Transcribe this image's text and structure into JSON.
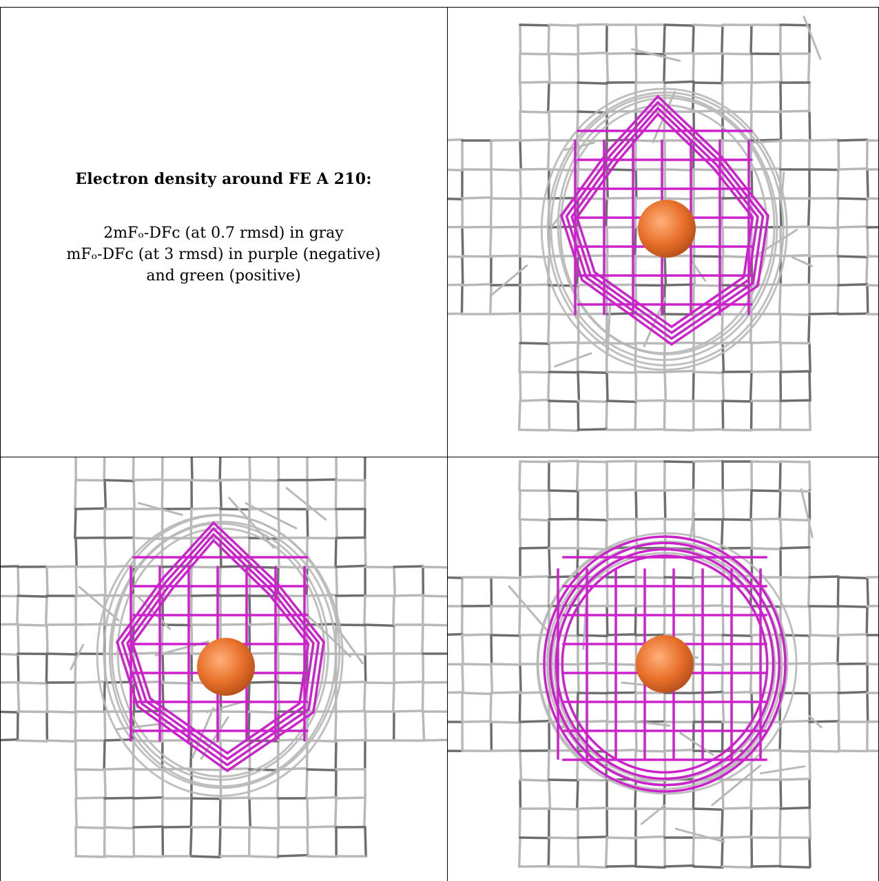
{
  "caption": {
    "title": "Electron density around FE A 210:",
    "line1": "2mFₒ-DFᴄ (at 0.7 rmsd) in gray",
    "line2": "mFₒ-DFᴄ (at 3 rmsd) in purple (negative)",
    "line3": "and green (positive)"
  },
  "colors": {
    "map_2fofc": "#b8b8b8",
    "map_2fofc_dark": "#6e6e6e",
    "map_fofc_negative": "#cc22cc",
    "map_fofc_positive": "#22aa22",
    "atom_fe": "#e8702a"
  },
  "panels": [
    {
      "name": "view-1",
      "style": "top"
    },
    {
      "name": "view-2",
      "style": "top"
    },
    {
      "name": "view-3",
      "style": "front"
    }
  ]
}
